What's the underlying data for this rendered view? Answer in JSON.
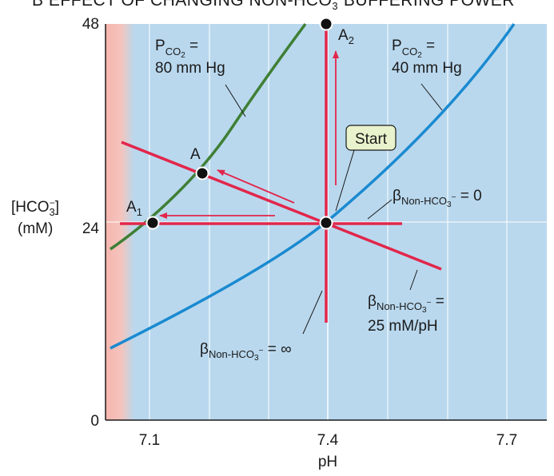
{
  "title": {
    "letter": "B",
    "text_pre": "EFFECT OF CHANGING NON-HCO",
    "text_sub": "3",
    "text_sup": "−",
    "text_post": " BUFFERING POWER"
  },
  "axes": {
    "x_label": "pH",
    "y_label_line1_pre": "[HCO",
    "y_label_line1_sub": "3",
    "y_label_line1_sup": "−",
    "y_label_line1_post": "]",
    "y_label_line2": "(mM)",
    "x_ticks": [
      "7.1",
      "7.4",
      "7.7"
    ],
    "y_ticks": [
      "0",
      "24",
      "48"
    ]
  },
  "curves": {
    "pco2_80": {
      "line1_pre": "P",
      "line1_sub": "CO",
      "line1_subsub": "2",
      "line1_post": " =",
      "line2": "80 mm Hg",
      "color": "#3f7f35"
    },
    "pco2_40": {
      "line1_pre": "P",
      "line1_sub": "CO",
      "line1_subsub": "2",
      "line1_post": " =",
      "line2": "40 mm Hg",
      "color": "#1a8ad0"
    }
  },
  "points": {
    "a": "A",
    "a1_pre": "A",
    "a1_sub": "1",
    "a2_pre": "A",
    "a2_sub": "2",
    "start": "Start"
  },
  "buffer_lines": {
    "zero": {
      "pre": "β",
      "sub": "Non-HCO",
      "subsub": "3",
      "subsup": "−",
      "post": " = 0"
    },
    "mid": {
      "pre": "β",
      "sub": "Non-HCO",
      "subsub": "3",
      "subsup": "−",
      "post": " =",
      "line2": "25 mM/pH"
    },
    "inf": {
      "pre": "β",
      "sub": "Non-HCO",
      "subsub": "3",
      "subsup": "−",
      "post": " = ∞"
    }
  },
  "colors": {
    "panel_bg": "#b9d8ee",
    "acid_band": "#f6b9b1",
    "buffer_line": "#e2264b",
    "grid": "#ffffff"
  }
}
